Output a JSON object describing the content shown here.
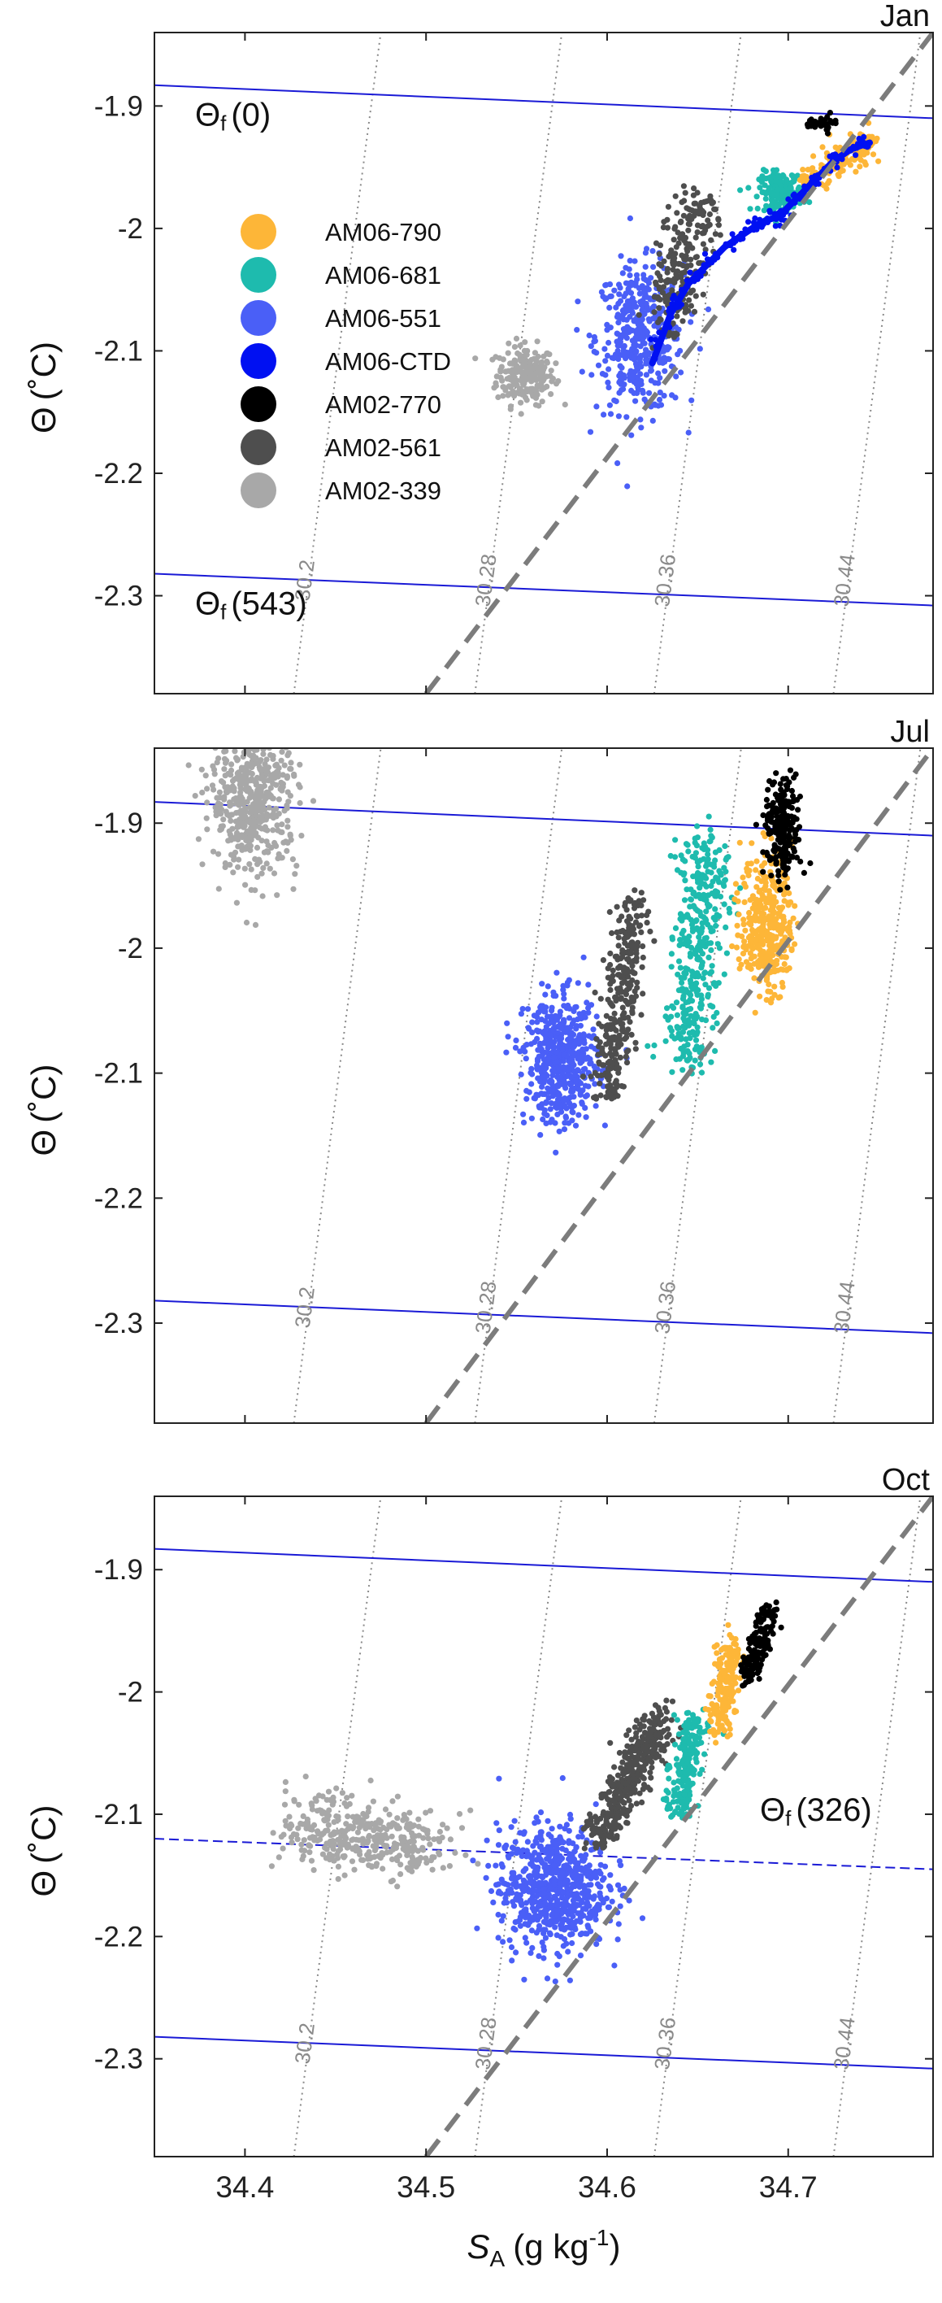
{
  "chart_data": [
    {
      "type": "scatter",
      "panel_label": "Jan",
      "xlim": [
        34.35,
        34.78
      ],
      "ylim": [
        -2.38,
        -1.84
      ],
      "xticks": [
        "34.4",
        "34.5",
        "34.6",
        "34.7"
      ],
      "yticks": [
        "-1.9",
        "-2",
        "-2.1",
        "-2.2",
        "-2.3"
      ],
      "ylabel_symbol": "Θ",
      "ylabel_unit": "(˚C)",
      "freezing_lines": [
        {
          "label": "Θ",
          "label_sub": "f",
          "label_arg": "(0)",
          "style": "solid",
          "x": [
            34.35,
            34.78
          ],
          "y": [
            -1.883,
            -1.91
          ]
        },
        {
          "label": "Θ",
          "label_sub": "f",
          "label_arg": "(543)",
          "style": "solid",
          "x": [
            34.35,
            34.78
          ],
          "y": [
            -2.282,
            -2.308
          ]
        }
      ],
      "dashed_line": {
        "x": [
          34.5,
          34.78
        ],
        "y": [
          -2.38,
          -1.84
        ]
      },
      "isopycnals": [
        {
          "label": "30.2",
          "x": [
            34.427,
            34.475
          ],
          "y": [
            -2.38,
            -1.84
          ]
        },
        {
          "label": "30.28",
          "x": [
            34.527,
            34.575
          ],
          "y": [
            -2.38,
            -1.84
          ]
        },
        {
          "label": "30.36",
          "x": [
            34.626,
            34.674
          ],
          "y": [
            -2.38,
            -1.84
          ]
        },
        {
          "label": "30.44",
          "x": [
            34.725,
            34.773
          ],
          "y": [
            -2.38,
            -1.84
          ]
        }
      ],
      "legend": [
        {
          "name": "AM06-790",
          "color": "#FDB638"
        },
        {
          "name": "AM06-681",
          "color": "#1EBBAE"
        },
        {
          "name": "AM06-551",
          "color": "#4A5FF7"
        },
        {
          "name": "AM06-CTD",
          "color": "#0010F2"
        },
        {
          "name": "AM02-770",
          "color": "#000000"
        },
        {
          "name": "AM02-561",
          "color": "#4E4E4E"
        },
        {
          "name": "AM02-339",
          "color": "#A8A8A8"
        }
      ],
      "series": [
        {
          "name": "AM02-339",
          "color": "#A8A8A8",
          "shape": "blob",
          "center": [
            34.555,
            -2.12
          ],
          "spread": [
            0.008,
            0.012
          ],
          "n": 220
        },
        {
          "name": "AM06-551",
          "color": "#4A5FF7",
          "shape": "blob",
          "center": [
            34.618,
            -2.09
          ],
          "spread": [
            0.012,
            0.03
          ],
          "n": 420
        },
        {
          "name": "AM02-561",
          "color": "#4E4E4E",
          "shape": "line_cloud",
          "from": [
            34.632,
            -2.08
          ],
          "to": [
            34.65,
            -1.98
          ],
          "width": 0.007,
          "n": 240
        },
        {
          "name": "AM06-681",
          "color": "#1EBBAE",
          "shape": "blob",
          "center": [
            34.696,
            -1.97
          ],
          "spread": [
            0.006,
            0.008
          ],
          "n": 180
        },
        {
          "name": "AM06-790",
          "color": "#FDB638",
          "shape": "line_cloud",
          "from": [
            34.71,
            -1.96
          ],
          "to": [
            34.745,
            -1.93
          ],
          "width": 0.004,
          "n": 160
        },
        {
          "name": "AM02-770",
          "color": "#000000",
          "shape": "line_cloud",
          "from": [
            34.713,
            -1.915
          ],
          "to": [
            34.725,
            -1.915
          ],
          "width": 0.002,
          "n": 30
        },
        {
          "name": "AM06-CTD",
          "color": "#0010F2",
          "shape": "path",
          "x": [
            34.625,
            34.635,
            34.645,
            34.655,
            34.665,
            34.675,
            34.685,
            34.695,
            34.705,
            34.715,
            34.725,
            34.735,
            34.745
          ],
          "y": [
            -2.11,
            -2.07,
            -2.045,
            -2.03,
            -2.015,
            -2.005,
            -1.995,
            -1.99,
            -1.975,
            -1.96,
            -1.945,
            -1.935,
            -1.93
          ]
        }
      ]
    },
    {
      "type": "scatter",
      "panel_label": "Jul",
      "xlim": [
        34.35,
        34.78
      ],
      "ylim": [
        -2.38,
        -1.84
      ],
      "xticks": [
        "34.4",
        "34.5",
        "34.6",
        "34.7"
      ],
      "yticks": [
        "-1.9",
        "-2",
        "-2.1",
        "-2.2",
        "-2.3"
      ],
      "ylabel_symbol": "Θ",
      "ylabel_unit": "(˚C)",
      "freezing_lines": [
        {
          "label": "",
          "label_sub": "",
          "label_arg": "",
          "style": "solid",
          "x": [
            34.35,
            34.78
          ],
          "y": [
            -1.883,
            -1.91
          ]
        },
        {
          "label": "",
          "label_sub": "",
          "label_arg": "",
          "style": "solid",
          "x": [
            34.35,
            34.78
          ],
          "y": [
            -2.282,
            -2.308
          ]
        }
      ],
      "dashed_line": {
        "x": [
          34.5,
          34.78
        ],
        "y": [
          -2.38,
          -1.84
        ]
      },
      "isopycnals": [
        {
          "label": "30.2",
          "x": [
            34.427,
            34.475
          ],
          "y": [
            -2.38,
            -1.84
          ]
        },
        {
          "label": "30.28",
          "x": [
            34.527,
            34.575
          ],
          "y": [
            -2.38,
            -1.84
          ]
        },
        {
          "label": "30.36",
          "x": [
            34.626,
            34.674
          ],
          "y": [
            -2.38,
            -1.84
          ]
        },
        {
          "label": "30.44",
          "x": [
            34.725,
            34.773
          ],
          "y": [
            -2.38,
            -1.84
          ]
        }
      ],
      "legend": [],
      "series": [
        {
          "name": "AM02-339",
          "color": "#A8A8A8",
          "shape": "blob",
          "center": [
            34.405,
            -1.88
          ],
          "spread": [
            0.012,
            0.03
          ],
          "n": 520
        },
        {
          "name": "AM06-551",
          "color": "#4A5FF7",
          "shape": "blob",
          "center": [
            34.575,
            -2.09
          ],
          "spread": [
            0.01,
            0.025
          ],
          "n": 520
        },
        {
          "name": "AM02-561",
          "color": "#4E4E4E",
          "shape": "line_cloud",
          "from": [
            34.6,
            -2.12
          ],
          "to": [
            34.615,
            -1.96
          ],
          "width": 0.005,
          "n": 300
        },
        {
          "name": "AM06-681",
          "color": "#1EBBAE",
          "shape": "line_cloud",
          "from": [
            34.643,
            -2.09
          ],
          "to": [
            34.655,
            -1.92
          ],
          "width": 0.007,
          "n": 380
        },
        {
          "name": "AM06-790",
          "color": "#FDB638",
          "shape": "blob",
          "center": [
            34.688,
            -1.98
          ],
          "spread": [
            0.007,
            0.028
          ],
          "n": 360
        },
        {
          "name": "AM02-770",
          "color": "#000000",
          "shape": "blob",
          "center": [
            34.697,
            -1.905
          ],
          "spread": [
            0.005,
            0.02
          ],
          "n": 220
        }
      ]
    },
    {
      "type": "scatter",
      "panel_label": "Oct",
      "xlim": [
        34.35,
        34.78
      ],
      "ylim": [
        -2.38,
        -1.84
      ],
      "xticks": [
        "34.4",
        "34.5",
        "34.6",
        "34.7"
      ],
      "yticks": [
        "-1.9",
        "-2",
        "-2.1",
        "-2.2",
        "-2.3"
      ],
      "xlabel_symbol": "S",
      "xlabel_sub": "A",
      "xlabel_unit": "(g kg",
      "xlabel_sup": "-1",
      "xlabel_close": ")",
      "ylabel_symbol": "Θ",
      "ylabel_unit": "(˚C)",
      "freezing_lines": [
        {
          "label": "",
          "label_sub": "",
          "label_arg": "",
          "style": "solid",
          "x": [
            34.35,
            34.78
          ],
          "y": [
            -1.883,
            -1.91
          ]
        },
        {
          "label": "Θ",
          "label_sub": "f",
          "label_arg": "(326)",
          "style": "dashed",
          "x": [
            34.35,
            34.78
          ],
          "y": [
            -2.12,
            -2.145
          ]
        },
        {
          "label": "",
          "label_sub": "",
          "label_arg": "",
          "style": "solid",
          "x": [
            34.35,
            34.78
          ],
          "y": [
            -2.282,
            -2.308
          ]
        }
      ],
      "dashed_line": {
        "x": [
          34.5,
          34.78
        ],
        "y": [
          -2.38,
          -1.84
        ]
      },
      "isopycnals": [
        {
          "label": "30.2",
          "x": [
            34.427,
            34.475
          ],
          "y": [
            -2.38,
            -1.84
          ]
        },
        {
          "label": "30.28",
          "x": [
            34.527,
            34.575
          ],
          "y": [
            -2.38,
            -1.84
          ]
        },
        {
          "label": "30.36",
          "x": [
            34.626,
            34.674
          ],
          "y": [
            -2.38,
            -1.84
          ]
        },
        {
          "label": "30.44",
          "x": [
            34.725,
            34.773
          ],
          "y": [
            -2.38,
            -1.84
          ]
        }
      ],
      "legend": [],
      "series": [
        {
          "name": "AM02-339",
          "color": "#A8A8A8",
          "shape": "line_cloud",
          "from": [
            34.43,
            -2.11
          ],
          "to": [
            34.505,
            -2.13
          ],
          "width": 0.01,
          "n": 380
        },
        {
          "name": "AM06-551",
          "color": "#4A5FF7",
          "shape": "blob",
          "center": [
            34.57,
            -2.16
          ],
          "spread": [
            0.015,
            0.025
          ],
          "n": 700
        },
        {
          "name": "AM02-561",
          "color": "#4E4E4E",
          "shape": "line_cloud",
          "from": [
            34.595,
            -2.12
          ],
          "to": [
            34.63,
            -2.02
          ],
          "width": 0.005,
          "n": 420
        },
        {
          "name": "AM06-681",
          "color": "#1EBBAE",
          "shape": "line_cloud",
          "from": [
            34.64,
            -2.1
          ],
          "to": [
            34.648,
            -2.02
          ],
          "width": 0.004,
          "n": 220
        },
        {
          "name": "AM06-790",
          "color": "#FDB638",
          "shape": "line_cloud",
          "from": [
            34.662,
            -2.03
          ],
          "to": [
            34.668,
            -1.96
          ],
          "width": 0.004,
          "n": 180
        },
        {
          "name": "AM02-770",
          "color": "#000000",
          "shape": "line_cloud",
          "from": [
            34.678,
            -1.99
          ],
          "to": [
            34.69,
            -1.93
          ],
          "width": 0.003,
          "n": 160
        }
      ]
    }
  ]
}
